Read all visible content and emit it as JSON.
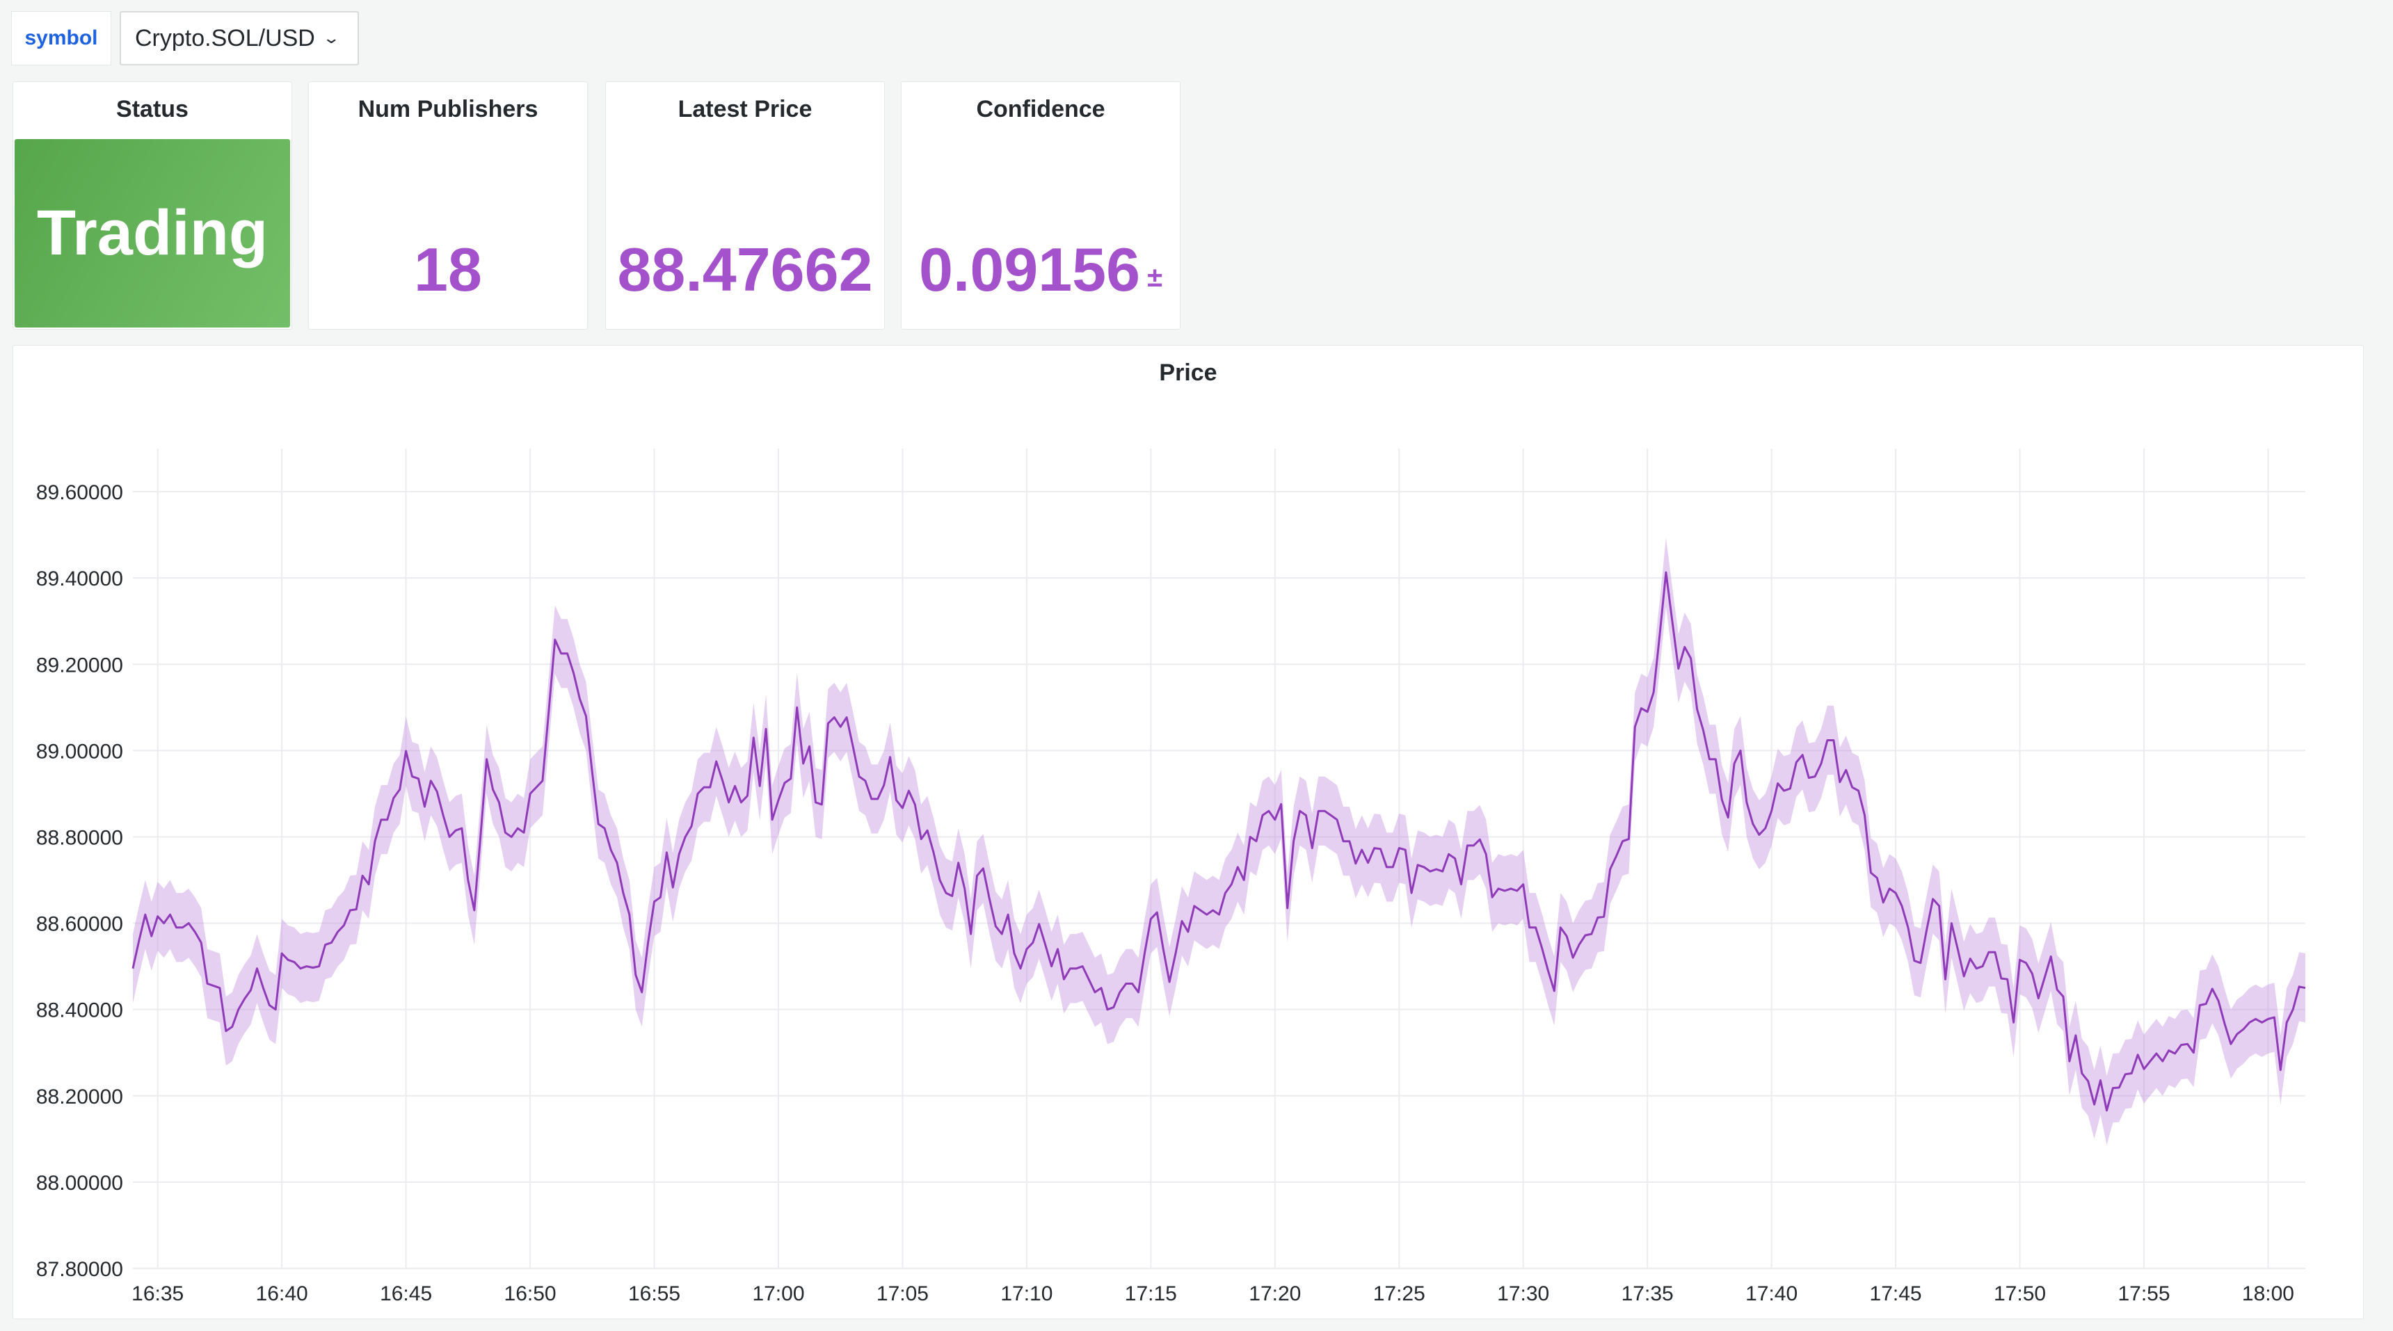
{
  "variable": {
    "label": "symbol",
    "value": "Crypto.SOL/USD",
    "chevron_icon": "chevron-down-icon"
  },
  "stats": [
    {
      "title": "Status",
      "value": "Trading",
      "color": "#73bf69"
    },
    {
      "title": "Num Publishers",
      "value": "18",
      "color": "#a352cc"
    },
    {
      "title": "Latest Price",
      "value": "88.47662",
      "color": "#a352cc"
    },
    {
      "title": "Confidence",
      "value": "0.09156",
      "unit": "±",
      "color": "#a352cc"
    }
  ],
  "chart_data": {
    "type": "line",
    "title": "Price",
    "xlabel": "",
    "ylabel": "",
    "grid": true,
    "legend": "none",
    "line_color": "#8f3bb8",
    "band_color": "#b877d9",
    "band_halfwidth": 0.08,
    "start_time": "16:34:00",
    "interval_seconds": 15,
    "xlim": [
      "16:34:00",
      "18:01:30"
    ],
    "ylim": [
      87.8,
      89.7
    ],
    "yticks": [
      "87.80000",
      "88.00000",
      "88.20000",
      "88.40000",
      "88.60000",
      "88.80000",
      "89.00000",
      "89.20000",
      "89.40000",
      "89.60000"
    ],
    "xticks": [
      "16:35",
      "16:40",
      "16:45",
      "16:50",
      "16:55",
      "17:00",
      "17:05",
      "17:10",
      "17:15",
      "17:20",
      "17:25",
      "17:30",
      "17:35",
      "17:40",
      "17:45",
      "17:50",
      "17:55",
      "18:00"
    ],
    "values": [
      88.495,
      88.56,
      88.62,
      88.57,
      88.616,
      88.6,
      88.62,
      88.59,
      88.59,
      88.6,
      88.58,
      88.555,
      88.46,
      88.455,
      88.45,
      88.35,
      88.36,
      88.4,
      88.425,
      88.445,
      88.495,
      88.45,
      88.41,
      88.4,
      88.53,
      88.515,
      88.51,
      88.495,
      88.5,
      88.497,
      88.5,
      88.55,
      88.555,
      88.58,
      88.595,
      88.63,
      88.632,
      88.71,
      88.69,
      88.79,
      88.84,
      88.84,
      88.89,
      88.91,
      88.999,
      88.94,
      88.935,
      88.87,
      88.93,
      88.905,
      88.85,
      88.8,
      88.815,
      88.82,
      88.7,
      88.63,
      88.8,
      88.98,
      88.91,
      88.88,
      88.81,
      88.8,
      88.82,
      88.81,
      88.9,
      88.915,
      88.93,
      89.09,
      89.257,
      89.225,
      89.225,
      89.18,
      89.12,
      89.08,
      88.95,
      88.83,
      88.82,
      88.77,
      88.74,
      88.67,
      88.62,
      88.48,
      88.44,
      88.555,
      88.65,
      88.66,
      88.764,
      88.683,
      88.76,
      88.8,
      88.825,
      88.9,
      88.915,
      88.915,
      88.975,
      88.93,
      88.88,
      88.918,
      88.88,
      88.895,
      89.03,
      88.918,
      89.05,
      88.84,
      88.885,
      88.925,
      88.935,
      89.1,
      88.97,
      89.01,
      88.88,
      88.875,
      89.063,
      89.077,
      89.055,
      89.077,
      89.01,
      88.94,
      88.93,
      88.888,
      88.888,
      88.92,
      88.985,
      88.885,
      88.867,
      88.907,
      88.875,
      88.795,
      88.815,
      88.764,
      88.7,
      88.67,
      88.663,
      88.74,
      88.68,
      88.575,
      88.71,
      88.727,
      88.656,
      88.593,
      88.575,
      88.62,
      88.53,
      88.495,
      88.54,
      88.555,
      88.598,
      88.55,
      88.5,
      88.54,
      88.47,
      88.495,
      88.495,
      88.5,
      88.47,
      88.44,
      88.45,
      88.4,
      88.405,
      88.44,
      88.46,
      88.46,
      88.44,
      88.53,
      88.61,
      88.625,
      88.54,
      88.464,
      88.53,
      88.605,
      88.58,
      88.64,
      88.63,
      88.62,
      88.63,
      88.62,
      88.67,
      88.69,
      88.73,
      88.7,
      88.8,
      88.79,
      88.85,
      88.86,
      88.84,
      88.876,
      88.635,
      88.79,
      88.86,
      88.85,
      88.774,
      88.86,
      88.86,
      88.85,
      88.84,
      88.79,
      88.79,
      88.738,
      88.77,
      88.74,
      88.774,
      88.772,
      88.73,
      88.73,
      88.774,
      88.77,
      88.67,
      88.735,
      88.73,
      88.72,
      88.725,
      88.72,
      88.76,
      88.75,
      88.69,
      88.78,
      88.78,
      88.794,
      88.76,
      88.66,
      88.68,
      88.675,
      88.68,
      88.675,
      88.69,
      88.59,
      88.59,
      88.543,
      88.49,
      88.443,
      88.59,
      88.57,
      88.52,
      88.55,
      88.572,
      88.575,
      88.613,
      88.615,
      88.725,
      88.756,
      88.79,
      88.795,
      89.055,
      89.098,
      89.09,
      89.135,
      89.27,
      89.413,
      89.3,
      89.19,
      89.24,
      89.214,
      89.096,
      89.047,
      88.98,
      88.98,
      88.886,
      88.845,
      88.97,
      89.0,
      88.88,
      88.83,
      88.805,
      88.82,
      88.86,
      88.924,
      88.907,
      88.912,
      88.973,
      88.99,
      88.937,
      88.94,
      88.97,
      89.024,
      89.024,
      88.927,
      88.955,
      88.915,
      88.907,
      88.85,
      88.717,
      88.705,
      88.648,
      88.68,
      88.67,
      88.64,
      88.59,
      88.513,
      88.508,
      88.585,
      88.656,
      88.64,
      88.47,
      88.6,
      88.54,
      88.477,
      88.518,
      88.495,
      88.5,
      88.533,
      88.533,
      88.472,
      88.47,
      88.37,
      88.515,
      88.508,
      88.483,
      88.426,
      88.474,
      88.523,
      88.446,
      88.43,
      88.28,
      88.34,
      88.252,
      88.234,
      88.18,
      88.236,
      88.166,
      88.218,
      88.219,
      88.25,
      88.252,
      88.295,
      88.262,
      88.28,
      88.298,
      88.28,
      88.305,
      88.298,
      88.318,
      88.32,
      88.3,
      88.41,
      88.413,
      88.448,
      88.42,
      88.367,
      88.32,
      88.343,
      88.354,
      88.37,
      88.378,
      88.37,
      88.378,
      88.382,
      88.26,
      88.37,
      88.4,
      88.453,
      88.45
    ]
  }
}
